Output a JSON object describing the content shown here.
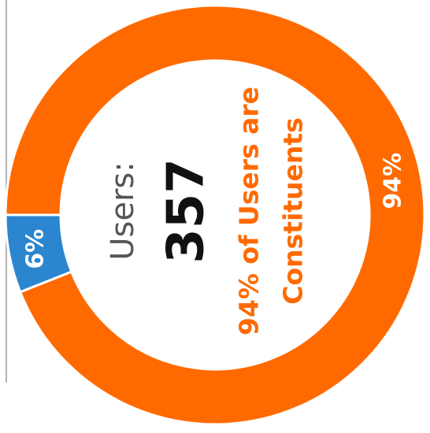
{
  "chart_data": {
    "type": "donut",
    "series": [
      {
        "color": "#ff6600",
        "values": [
          94,
          6
        ]
      }
    ],
    "colors": [
      "#ff6a00",
      "#2b86cf"
    ],
    "values": [
      94,
      6
    ],
    "value_labels": [
      "94%",
      "6%"
    ],
    "center_label": "Users:",
    "center_value": "357",
    "annotation": [
      "94% of Users are",
      "Constituents"
    ]
  }
}
